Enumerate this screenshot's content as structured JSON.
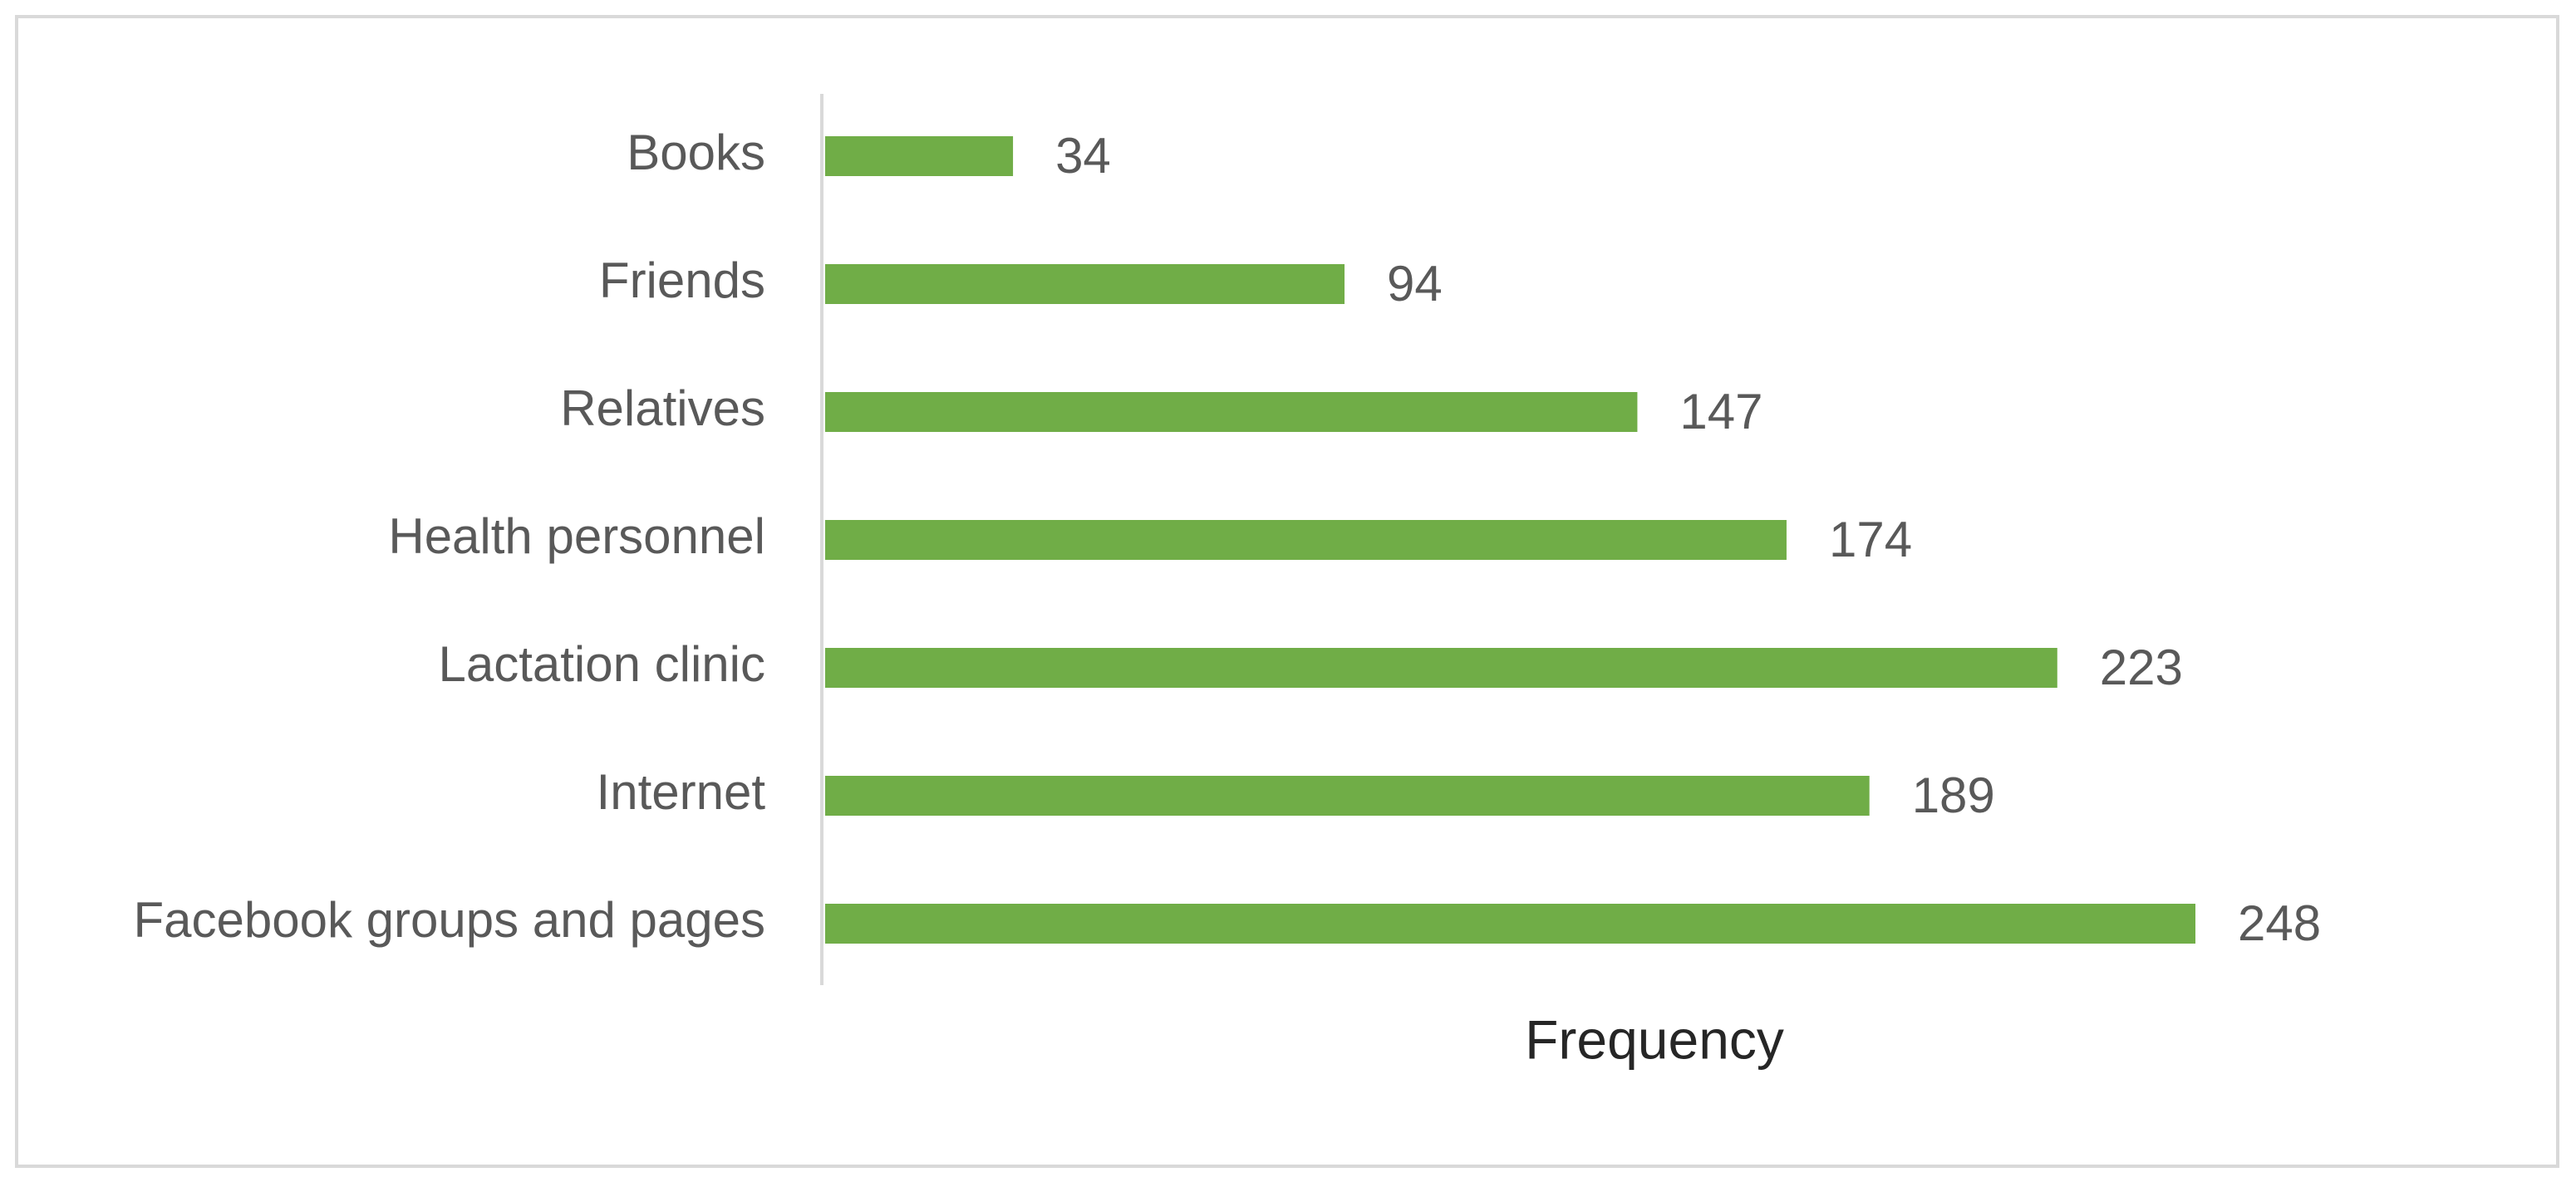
{
  "chart_data": {
    "type": "bar",
    "orientation": "horizontal",
    "x_label": "Frequency",
    "categories": [
      "Books",
      "Friends",
      "Relatives",
      "Health personnel",
      "Lactation clinic",
      "Internet",
      "Facebook groups and pages"
    ],
    "values": [
      34,
      94,
      147,
      174,
      223,
      189,
      248
    ],
    "color": "#70ad47"
  }
}
